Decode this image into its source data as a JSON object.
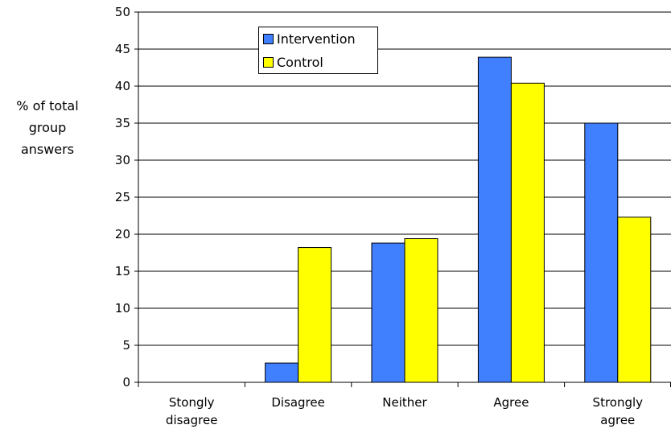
{
  "chart_data": {
    "type": "bar",
    "categories": [
      "Stongly disagree",
      "Disagree",
      "Neither",
      "Agree",
      "Strongly agree"
    ],
    "category_lines": [
      [
        "Stongly",
        "disagree"
      ],
      [
        "Disagree"
      ],
      [
        "Neither"
      ],
      [
        "Agree"
      ],
      [
        "Strongly",
        "agree"
      ]
    ],
    "series": [
      {
        "name": "Intervention",
        "values": [
          0,
          2.6,
          18.8,
          43.9,
          35.0
        ],
        "color": "#4080ff"
      },
      {
        "name": "Control",
        "values": [
          0,
          18.2,
          19.4,
          40.4,
          22.3
        ],
        "color": "#ffff00"
      }
    ],
    "ylabel_lines": [
      "% of total",
      "group",
      "answers"
    ],
    "ylim": [
      0,
      50
    ],
    "yticks": [
      0,
      5,
      10,
      15,
      20,
      25,
      30,
      35,
      40,
      45,
      50
    ],
    "grid": true,
    "legend_position": "top-left"
  }
}
